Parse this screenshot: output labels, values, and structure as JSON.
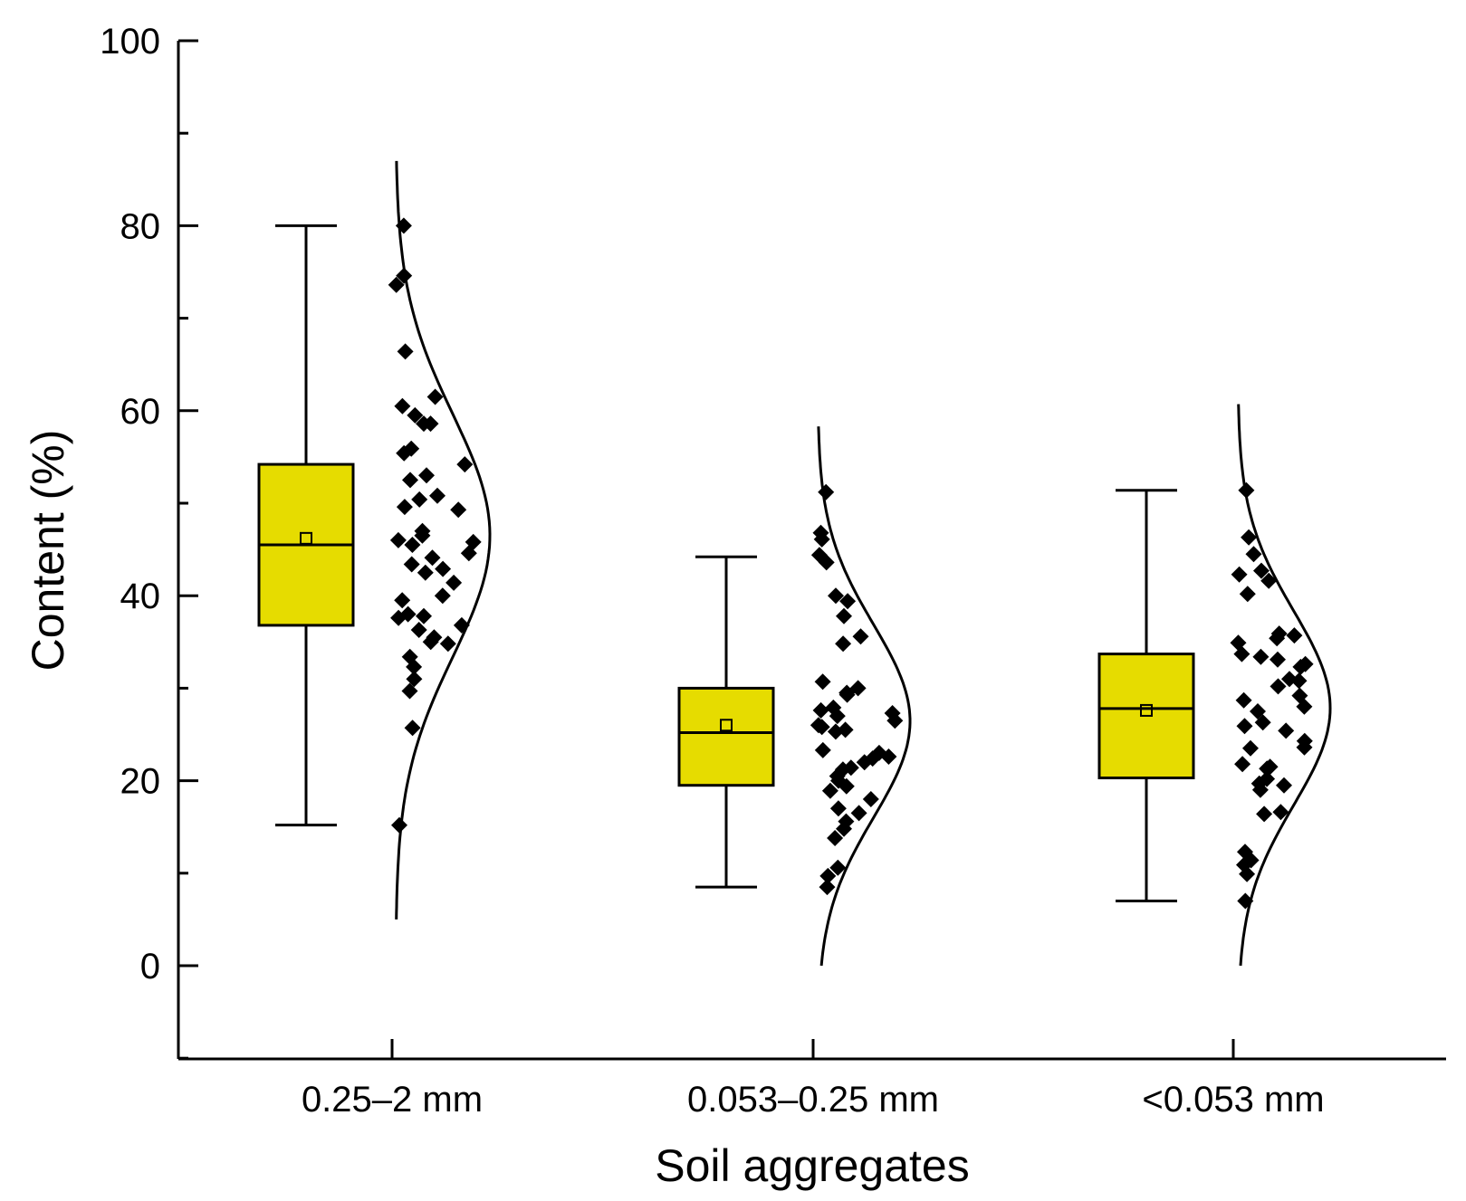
{
  "chart_data": {
    "type": "box",
    "xlabel": "Soil aggregates",
    "ylabel": "Content (%)",
    "ylim": [
      -10,
      100
    ],
    "yticks": [
      0,
      20,
      40,
      60,
      80,
      100
    ],
    "grid": false,
    "box_color": "#e6dc00",
    "categories": [
      {
        "label": "0.25–2 mm",
        "box": {
          "min": 15.2,
          "q1": 36.8,
          "median": 45.5,
          "q3": 54.2,
          "max": 80.0,
          "mean": 46.2
        },
        "distribution_range": [
          5,
          87
        ],
        "points": [
          80.0,
          74.6,
          73.6,
          66.4,
          61.5,
          60.5,
          59.5,
          58.6,
          58.6,
          55.9,
          55.4,
          54.2,
          53.0,
          52.5,
          50.8,
          50.4,
          49.6,
          49.3,
          47.0,
          46.5,
          46.0,
          45.8,
          45.5,
          44.6,
          44.1,
          43.4,
          42.9,
          42.5,
          41.4,
          40.0,
          39.5,
          38.0,
          37.8,
          37.6,
          36.8,
          36.3,
          35.5,
          35.0,
          34.8,
          33.4,
          32.3,
          31.0,
          29.7,
          25.7,
          15.2
        ]
      },
      {
        "label": "0.053–0.25 mm",
        "box": {
          "min": 8.5,
          "q1": 19.5,
          "median": 25.2,
          "q3": 30.0,
          "max": 44.2,
          "mean": 26.0
        },
        "distribution_range": [
          0,
          58.3
        ],
        "points": [
          51.2,
          46.8,
          46.1,
          44.4,
          43.6,
          40.0,
          39.4,
          37.8,
          35.6,
          34.8,
          30.7,
          30.0,
          29.5,
          29.3,
          27.9,
          27.6,
          27.3,
          27.0,
          26.5,
          26.0,
          25.8,
          25.5,
          25.3,
          23.3,
          23.0,
          22.6,
          22.4,
          22.0,
          21.4,
          21.2,
          20.5,
          20.0,
          19.4,
          18.9,
          18.0,
          17.0,
          16.5,
          15.6,
          14.8,
          13.8,
          10.6,
          9.7,
          8.5
        ]
      },
      {
        "label": "<0.053 mm",
        "box": {
          "min": 7.0,
          "q1": 20.3,
          "median": 27.8,
          "q3": 33.7,
          "max": 51.4,
          "mean": 27.6
        },
        "distribution_range": [
          0,
          60.7
        ],
        "points": [
          51.4,
          46.3,
          44.5,
          42.7,
          42.3,
          41.6,
          40.2,
          35.9,
          35.7,
          35.4,
          34.9,
          33.7,
          33.4,
          33.1,
          32.6,
          32.3,
          31.0,
          30.8,
          30.2,
          29.2,
          28.7,
          28.0,
          27.5,
          26.3,
          25.9,
          25.4,
          24.3,
          23.6,
          23.5,
          21.8,
          21.5,
          21.3,
          20.2,
          19.7,
          19.5,
          19.0,
          16.6,
          16.4,
          12.3,
          11.4,
          10.9,
          9.9,
          7.0
        ]
      }
    ]
  }
}
